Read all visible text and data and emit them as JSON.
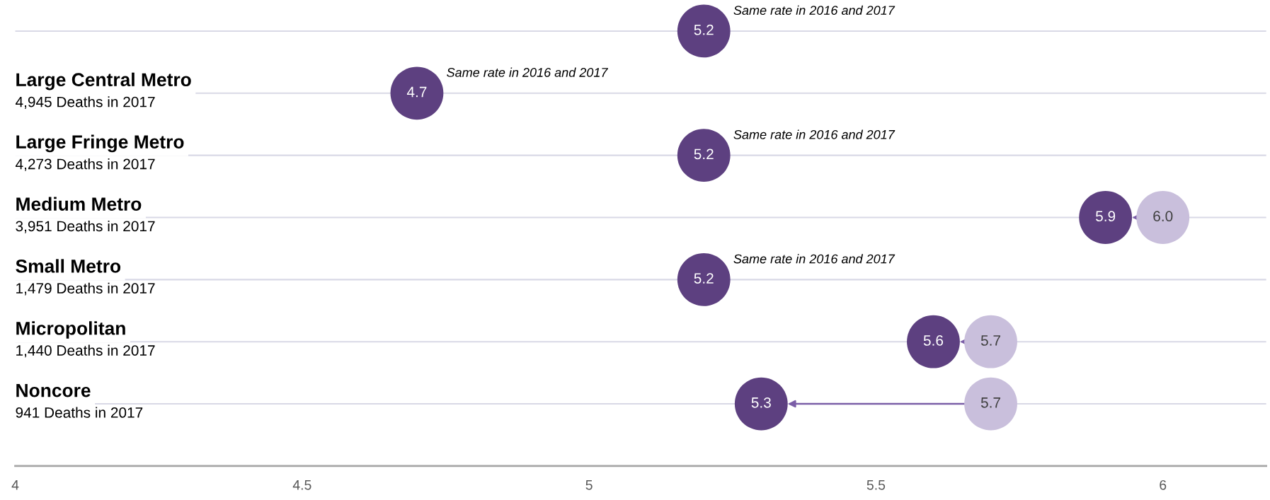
{
  "chart_data": {
    "type": "scatter",
    "categories": [
      null,
      "Large Central Metro\n4,945 Deaths in 2017",
      "Large Fringe Metro\n4,273 Deaths in 2017",
      "Medium Metro\n3,951 Deaths in 2017",
      "Small Metro\n1,479 Deaths in 2017",
      "Micropolitan\n1,440 Deaths in 2017",
      "Noncore\n941 Deaths in 2017"
    ],
    "series": [
      {
        "color": "#c9bfdc",
        "values": [
          null,
          null,
          null,
          6.0,
          null,
          5.7,
          5.7
        ],
        "value_labels": [
          null,
          null,
          null,
          "6.0",
          null,
          "5.7",
          "5.7"
        ]
      },
      {
        "color": "#5d4080",
        "values": [
          5.2,
          4.7,
          5.2,
          5.9,
          5.2,
          5.6,
          5.3
        ],
        "value_labels": [
          "5.2",
          "4.7",
          "5.2",
          "5.9",
          "5.2",
          "5.6",
          "5.3"
        ]
      }
    ],
    "orientation": "horizontal",
    "marker": "circle",
    "xlim": [
      4,
      6.18
    ],
    "xticks": [
      4,
      4.5,
      5,
      5.5,
      6
    ],
    "grid": "y",
    "annotations": [
      "Same rate in 2016 and 2017",
      "Same rate in 2016 and 2017",
      "Same rate in 2016 and 2017",
      "Same rate in 2016 and 2017"
    ]
  }
}
